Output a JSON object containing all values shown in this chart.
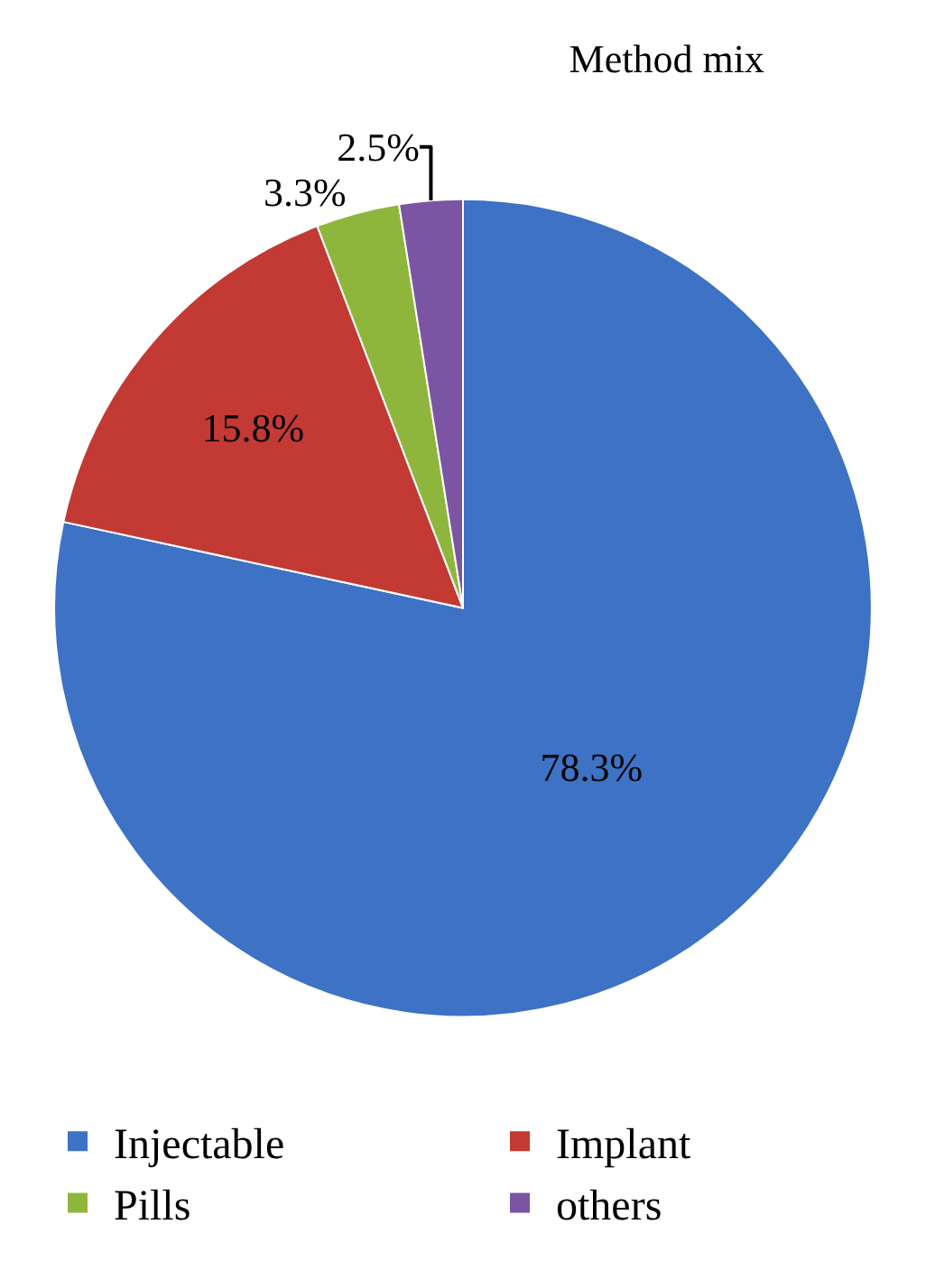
{
  "chart_data": {
    "type": "pie",
    "title": "Method mix",
    "categories": [
      "Injectable",
      "Implant",
      "Pills",
      "others"
    ],
    "values": [
      78.3,
      15.8,
      3.3,
      2.5
    ],
    "value_labels": [
      "78.3%",
      "15.8%",
      "3.3%",
      "2.5%"
    ],
    "colors": [
      "#3d72c4",
      "#c23a33",
      "#8fb63c",
      "#7b55a3"
    ],
    "legend": "bottom"
  }
}
